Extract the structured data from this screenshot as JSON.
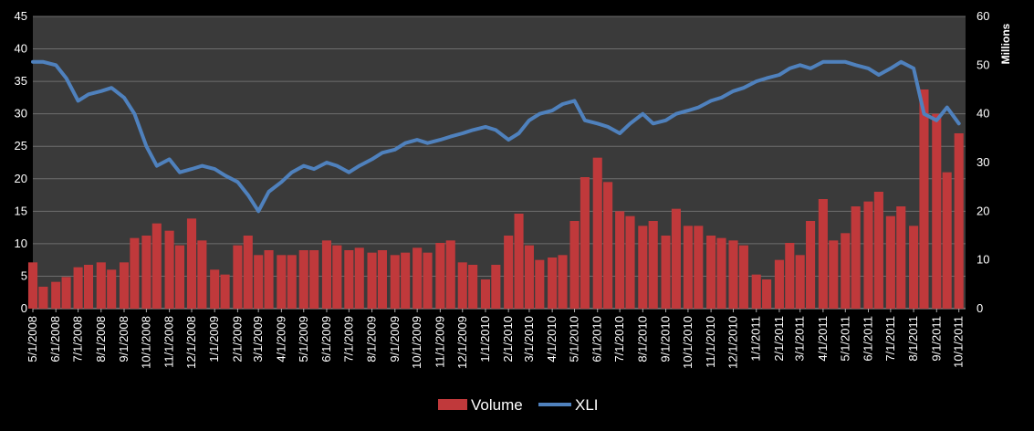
{
  "chart_data": {
    "type": "bar+line",
    "title": "",
    "background": "#000000",
    "plot_background": "#3a3a3a",
    "gridlines": true,
    "legend_position": "bottom",
    "x_tick_labels": [
      "5/1/2008",
      "6/1/2008",
      "7/1/2008",
      "8/1/2008",
      "9/1/2008",
      "10/1/2008",
      "11/1/2008",
      "12/1/2008",
      "1/1/2009",
      "2/1/2009",
      "3/1/2009",
      "4/1/2009",
      "5/1/2009",
      "6/1/2009",
      "7/1/2009",
      "8/1/2009",
      "9/1/2009",
      "10/1/2009",
      "11/1/2009",
      "12/1/2009",
      "1/1/2010",
      "2/1/2010",
      "3/1/2010",
      "4/1/2010",
      "5/1/2010",
      "6/1/2010",
      "7/1/2010",
      "8/1/2010",
      "9/1/2010",
      "10/1/2010",
      "11/1/2010",
      "12/1/2010",
      "1/1/2011",
      "2/1/2011",
      "3/1/2011",
      "4/1/2011",
      "5/1/2011",
      "6/1/2011",
      "7/1/2011",
      "8/1/2011",
      "9/1/2011",
      "10/1/2011"
    ],
    "left_axis": {
      "ylim": [
        0,
        45
      ],
      "ticks": [
        "0",
        "5",
        "10",
        "15",
        "20",
        "25",
        "30",
        "35",
        "40",
        "45"
      ]
    },
    "right_axis": {
      "ylim": [
        0,
        60
      ],
      "ticks": [
        "0",
        "10",
        "20",
        "30",
        "40",
        "50",
        "60"
      ],
      "label": "Millions"
    },
    "series": [
      {
        "name": "Volume",
        "type": "bar",
        "axis": "right",
        "unit": "millions",
        "color": "#c0393b",
        "x": [
          "5/1/2008",
          "5/15/2008",
          "6/1/2008",
          "6/15/2008",
          "7/1/2008",
          "7/15/2008",
          "8/1/2008",
          "8/15/2008",
          "9/1/2008",
          "9/15/2008",
          "10/1/2008",
          "10/15/2008",
          "11/1/2008",
          "11/15/2008",
          "12/1/2008",
          "12/15/2008",
          "1/1/2009",
          "1/15/2009",
          "2/1/2009",
          "2/15/2009",
          "3/1/2009",
          "3/15/2009",
          "4/1/2009",
          "4/15/2009",
          "5/1/2009",
          "5/15/2009",
          "6/1/2009",
          "6/15/2009",
          "7/1/2009",
          "7/15/2009",
          "8/1/2009",
          "8/15/2009",
          "9/1/2009",
          "9/15/2009",
          "10/1/2009",
          "10/15/2009",
          "11/1/2009",
          "11/15/2009",
          "12/1/2009",
          "12/15/2009",
          "1/1/2010",
          "1/15/2010",
          "2/1/2010",
          "2/15/2010",
          "3/1/2010",
          "3/15/2010",
          "4/1/2010",
          "4/15/2010",
          "5/1/2010",
          "5/15/2010",
          "6/1/2010",
          "6/15/2010",
          "7/1/2010",
          "7/15/2010",
          "8/1/2010",
          "8/15/2010",
          "9/1/2010",
          "9/15/2010",
          "10/1/2010",
          "10/15/2010",
          "11/1/2010",
          "11/15/2010",
          "12/1/2010",
          "12/15/2010",
          "1/1/2011",
          "1/15/2011",
          "2/1/2011",
          "2/15/2011",
          "3/1/2011",
          "3/15/2011",
          "4/1/2011",
          "4/15/2011",
          "5/1/2011",
          "5/15/2011",
          "6/1/2011",
          "6/15/2011",
          "7/1/2011",
          "7/15/2011",
          "8/1/2011",
          "8/15/2011",
          "9/1/2011",
          "9/15/2011",
          "10/1/2011"
        ],
        "values": [
          9.5,
          4.5,
          5.5,
          6.5,
          8.5,
          9,
          9.5,
          8,
          9.5,
          14.5,
          15,
          17.5,
          16,
          13,
          18.5,
          14,
          8,
          7,
          13,
          15,
          11,
          12,
          11,
          11,
          12,
          12,
          14,
          13,
          12,
          12.5,
          11.5,
          12,
          11,
          11.5,
          12.5,
          11.5,
          13.5,
          14,
          9.5,
          9,
          6,
          9,
          15,
          19.5,
          13,
          10,
          10.5,
          11,
          18,
          27,
          31,
          26,
          20,
          19,
          17,
          18,
          15,
          20.5,
          17,
          17,
          15,
          14.5,
          14,
          13,
          7,
          6,
          10,
          13.5,
          11,
          18,
          22.5,
          14,
          15.5,
          21,
          22,
          24,
          19,
          21,
          17,
          45,
          40,
          28,
          36
        ]
      },
      {
        "name": "XLI",
        "type": "line",
        "axis": "left",
        "color": "#4f81bd",
        "x": [
          "5/1/2008",
          "5/15/2008",
          "6/1/2008",
          "6/15/2008",
          "7/1/2008",
          "7/15/2008",
          "8/1/2008",
          "8/15/2008",
          "9/1/2008",
          "9/15/2008",
          "10/1/2008",
          "10/15/2008",
          "11/1/2008",
          "11/15/2008",
          "12/1/2008",
          "12/15/2008",
          "1/1/2009",
          "1/15/2009",
          "2/1/2009",
          "2/15/2009",
          "3/1/2009",
          "3/15/2009",
          "4/1/2009",
          "4/15/2009",
          "5/1/2009",
          "5/15/2009",
          "6/1/2009",
          "6/15/2009",
          "7/1/2009",
          "7/15/2009",
          "8/1/2009",
          "8/15/2009",
          "9/1/2009",
          "9/15/2009",
          "10/1/2009",
          "10/15/2009",
          "11/1/2009",
          "11/15/2009",
          "12/1/2009",
          "12/15/2009",
          "1/1/2010",
          "1/15/2010",
          "2/1/2010",
          "2/15/2010",
          "3/1/2010",
          "3/15/2010",
          "4/1/2010",
          "4/15/2010",
          "5/1/2010",
          "5/15/2010",
          "6/1/2010",
          "6/15/2010",
          "7/1/2010",
          "7/15/2010",
          "8/1/2010",
          "8/15/2010",
          "9/1/2010",
          "9/15/2010",
          "10/1/2010",
          "10/15/2010",
          "11/1/2010",
          "11/15/2010",
          "12/1/2010",
          "12/15/2010",
          "1/1/2011",
          "1/15/2011",
          "2/1/2011",
          "2/15/2011",
          "3/1/2011",
          "3/15/2011",
          "4/1/2011",
          "4/15/2011",
          "5/1/2011",
          "5/15/2011",
          "6/1/2011",
          "6/15/2011",
          "7/1/2011",
          "7/15/2011",
          "8/1/2011",
          "8/15/2011",
          "9/1/2011",
          "9/15/2011",
          "10/1/2011"
        ],
        "values": [
          38,
          38,
          37.5,
          35.5,
          32,
          33,
          33.5,
          34,
          32.5,
          30,
          25,
          22,
          23,
          21,
          21.5,
          22,
          21.5,
          20.5,
          19.5,
          17.5,
          15,
          18,
          19.5,
          21,
          22,
          21.5,
          22.5,
          22,
          21,
          22,
          23,
          24,
          24.5,
          25.5,
          26,
          25.5,
          26,
          26.5,
          27,
          27.5,
          28,
          27.5,
          26,
          27,
          29,
          30,
          30.5,
          31.5,
          32,
          29,
          28.5,
          28,
          27,
          28.5,
          30,
          28.5,
          29,
          30,
          30.5,
          31,
          32,
          32.5,
          33.5,
          34,
          35,
          35.5,
          36,
          37,
          37.5,
          37,
          38,
          38,
          38,
          37.5,
          37,
          36,
          37,
          38,
          37,
          30,
          29,
          31,
          28.5
        ]
      }
    ]
  },
  "legend": {
    "volume_label": "Volume",
    "xli_label": "XLI"
  }
}
